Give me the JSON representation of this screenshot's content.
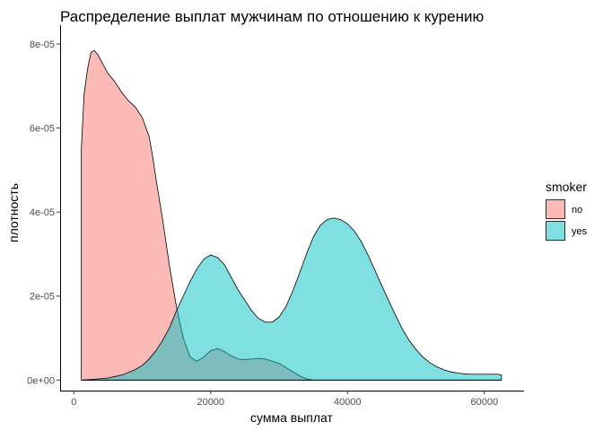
{
  "chart_data": {
    "type": "area",
    "title": "Распределение выплат мужчинам по отношению к курению",
    "xlabel": "сумма выплат",
    "ylabel": "плотность",
    "xlim": [
      -2000,
      65800
    ],
    "ylim": [
      -2.5e-06,
      8.45e-05
    ],
    "x_ticks": [
      0,
      20000,
      40000,
      60000
    ],
    "x_tick_labels": [
      "0",
      "20000",
      "40000",
      "60000"
    ],
    "y_ticks": [
      0,
      2e-05,
      4e-05,
      6e-05,
      8e-05
    ],
    "y_tick_labels": [
      "0e+00",
      "2e-05",
      "4e-05",
      "6e-05",
      "8e-05"
    ],
    "grid": false,
    "legend": {
      "title": "smoker",
      "placement": "right",
      "entries": [
        "no",
        "yes"
      ]
    },
    "series": [
      {
        "name": "no",
        "color": "#F8766D",
        "opacity": 0.5,
        "x": [
          1100,
          1500,
          2000,
          2500,
          3000,
          3500,
          4000,
          5000,
          6000,
          7000,
          8000,
          9000,
          10000,
          11000,
          11500,
          12000,
          13000,
          14000,
          15000,
          16000,
          17000,
          18000,
          19000,
          20000,
          21000,
          22000,
          23000,
          24000,
          25000,
          26000,
          27000,
          28000,
          29000,
          30000,
          31000,
          32000,
          33000,
          34000,
          35000,
          40000,
          50000,
          60000,
          62500
        ],
        "y": [
          5.5e-05,
          6.8e-05,
          7.4e-05,
          7.8e-05,
          7.85e-05,
          7.75e-05,
          7.6e-05,
          7.3e-05,
          7.1e-05,
          6.85e-05,
          6.65e-05,
          6.5e-05,
          6.25e-05,
          5.8e-05,
          5.35e-05,
          4.8e-05,
          3.8e-05,
          2.7e-05,
          1.75e-05,
          1e-05,
          5.5e-06,
          4.5e-06,
          5.5e-06,
          7e-06,
          7.5e-06,
          6.8e-06,
          5.8e-06,
          5e-06,
          4.9e-06,
          5e-06,
          5.2e-06,
          5e-06,
          4.5e-06,
          4e-06,
          3e-06,
          2e-06,
          1e-06,
          3e-07,
          0.0,
          0.0,
          0.0,
          0.0,
          0.0
        ]
      },
      {
        "name": "yes",
        "color": "#00BFC4",
        "opacity": 0.5,
        "x": [
          1100,
          3000,
          5000,
          7000,
          9000,
          10000,
          11000,
          12000,
          13000,
          14000,
          15000,
          16000,
          17000,
          18000,
          19000,
          20000,
          21000,
          22000,
          23000,
          24000,
          25000,
          26000,
          27000,
          28000,
          29000,
          30000,
          31000,
          32000,
          33000,
          34000,
          35000,
          36000,
          37000,
          38000,
          39000,
          40000,
          41000,
          42000,
          43000,
          44000,
          45000,
          46000,
          47000,
          48000,
          49000,
          50000,
          51000,
          52000,
          53000,
          54000,
          55000,
          56000,
          57000,
          58000,
          59000,
          60000,
          61000,
          62000,
          62500
        ],
        "y": [
          0.0,
          2e-07,
          5e-07,
          1.2e-06,
          2.5e-06,
          3.5e-06,
          5e-06,
          7e-06,
          9.5e-06,
          1.25e-05,
          1.65e-05,
          2e-05,
          2.35e-05,
          2.65e-05,
          2.88e-05,
          2.98e-05,
          2.92e-05,
          2.75e-05,
          2.45e-05,
          2.15e-05,
          1.9e-05,
          1.65e-05,
          1.47e-05,
          1.38e-05,
          1.38e-05,
          1.5e-05,
          1.75e-05,
          2.12e-05,
          2.55e-05,
          3e-05,
          3.4e-05,
          3.68e-05,
          3.82e-05,
          3.86e-05,
          3.82e-05,
          3.72e-05,
          3.55e-05,
          3.3e-05,
          2.98e-05,
          2.62e-05,
          2.25e-05,
          1.9e-05,
          1.55e-05,
          1.22e-05,
          9.5e-06,
          7.3e-06,
          5.5e-06,
          4.2e-06,
          3.2e-06,
          2.5e-06,
          2e-06,
          1.7e-06,
          1.5e-06,
          1.4e-06,
          1.4e-06,
          1.4e-06,
          1.4e-06,
          1.4e-06,
          1.2e-06
        ]
      }
    ]
  }
}
